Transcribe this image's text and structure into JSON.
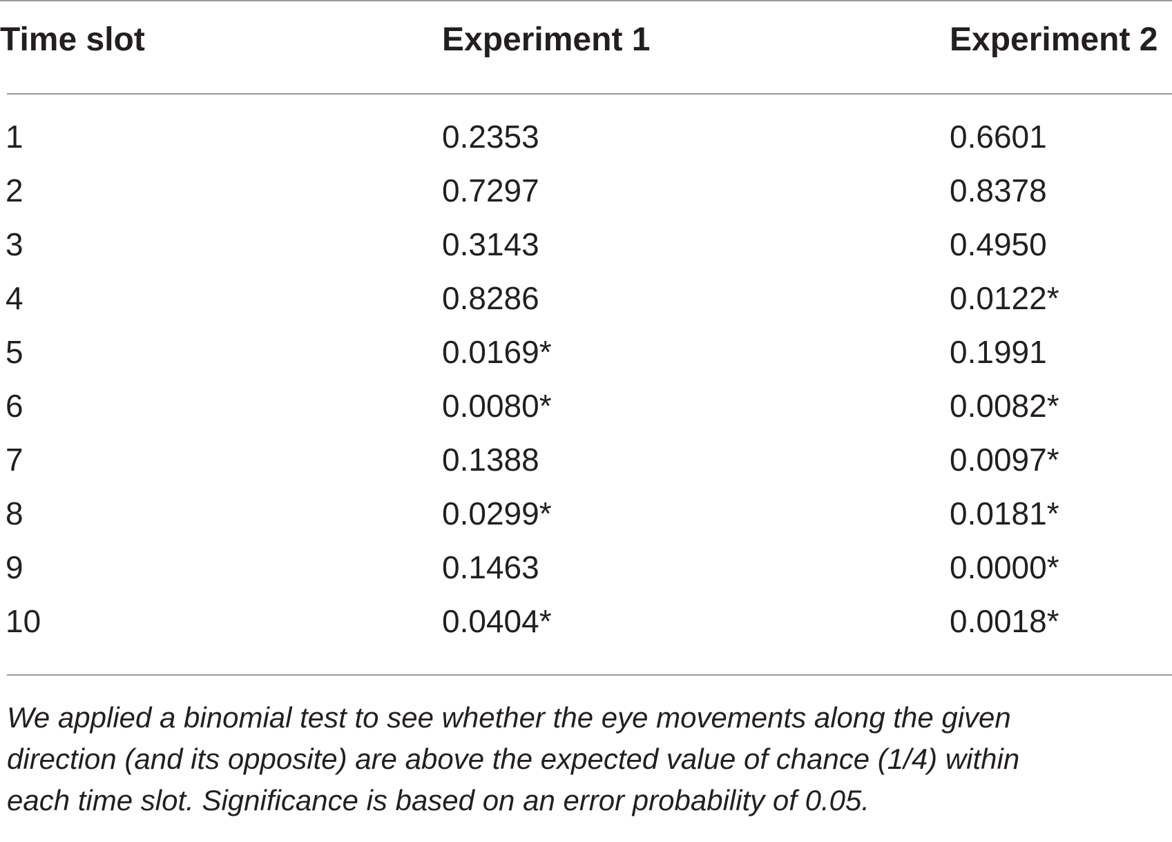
{
  "table": {
    "headers": [
      "Time slot",
      "Experiment 1",
      "Experiment 2"
    ],
    "rows": [
      [
        "1",
        "0.2353",
        "0.6601"
      ],
      [
        "2",
        "0.7297",
        "0.8378"
      ],
      [
        "3",
        "0.3143",
        "0.4950"
      ],
      [
        "4",
        "0.8286",
        "0.0122*"
      ],
      [
        "5",
        "0.0169*",
        "0.1991"
      ],
      [
        "6",
        "0.0080*",
        "0.0082*"
      ],
      [
        "7",
        "0.1388",
        "0.0097*"
      ],
      [
        "8",
        "0.0299*",
        "0.0181*"
      ],
      [
        "9",
        "0.1463",
        "0.0000*"
      ],
      [
        "10",
        "0.0404*",
        "0.0018*"
      ]
    ]
  },
  "footnote": {
    "lines": [
      "We applied a binomial test to see whether the eye movements along the given",
      "direction (and its opposite) are above the expected value of chance (1/4) within",
      "each time slot. Significance is based on an error probability of 0.05."
    ]
  }
}
